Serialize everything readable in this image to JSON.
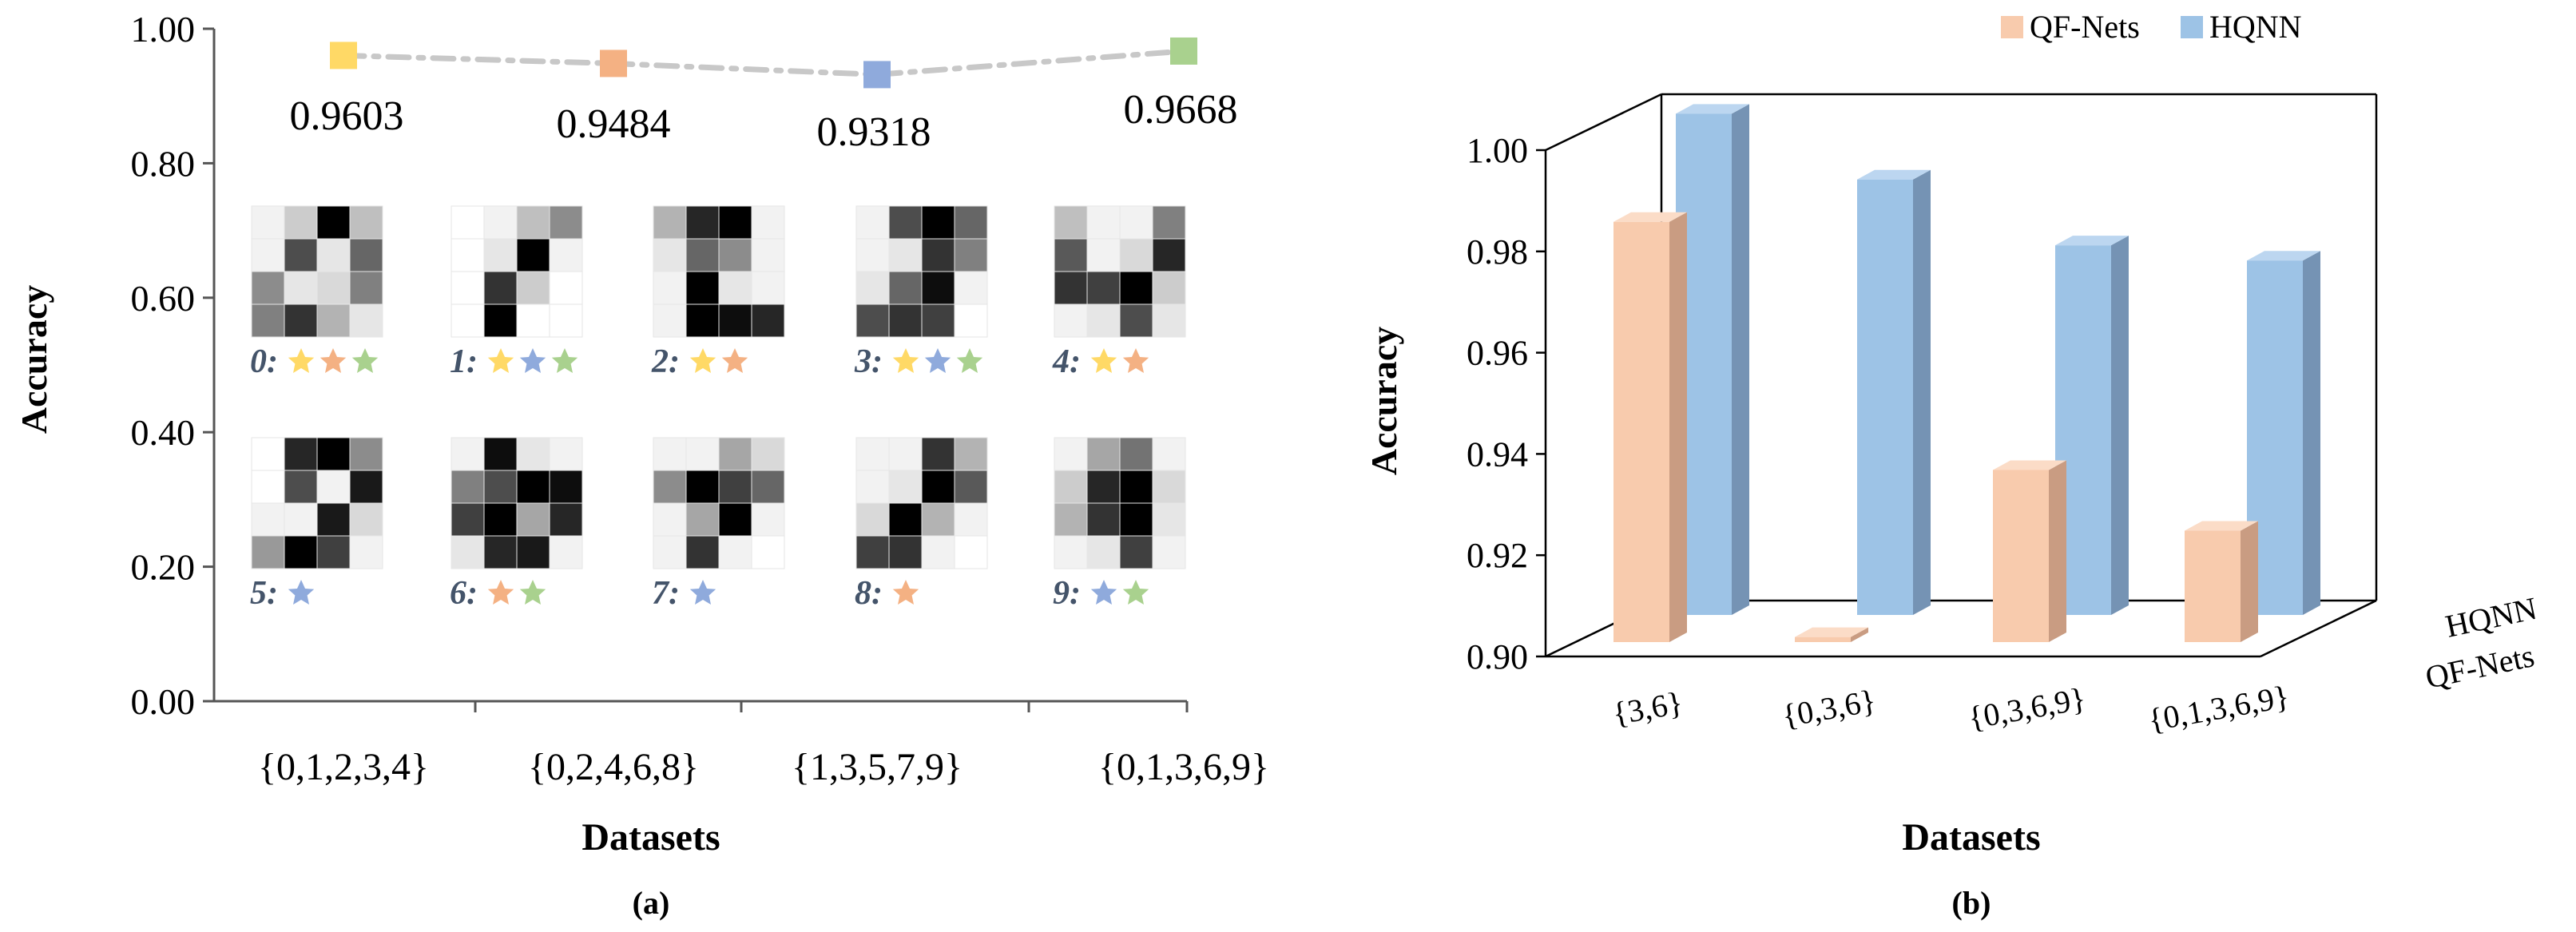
{
  "chart_data": [
    {
      "type": "line",
      "panel_label": "(a)",
      "ylabel": "Accuracy",
      "xlabel": "Datasets",
      "ylim": [
        0,
        1
      ],
      "yticks": [
        "0.00",
        "0.20",
        "0.40",
        "0.60",
        "0.80",
        "1.00"
      ],
      "categories": [
        "{0,1,2,3,4}",
        "{0,2,4,6,8}",
        "{1,3,5,7,9}",
        "{0,1,3,6,9}"
      ],
      "values": [
        0.9603,
        0.9484,
        0.9318,
        0.9668
      ],
      "value_labels": [
        "0.9603",
        "0.9484",
        "0.9318",
        "0.9668"
      ],
      "marker_colors": [
        "#ffd966",
        "#f4b183",
        "#8faadc",
        "#a9d18e"
      ],
      "line_color": "#c8c8c8",
      "digit_labels": [
        "0:",
        "1:",
        "2:",
        "3:",
        "4:",
        "5:",
        "6:",
        "7:",
        "8:",
        "9:"
      ],
      "digit_stars": [
        [
          "#ffd966",
          "#f4b183",
          "#a9d18e"
        ],
        [
          "#ffd966",
          "#8faadc",
          "#a9d18e"
        ],
        [
          "#ffd966",
          "#f4b183"
        ],
        [
          "#ffd966",
          "#8faadc",
          "#a9d18e"
        ],
        [
          "#ffd966",
          "#f4b183"
        ],
        [
          "#8faadc"
        ],
        [
          "#f4b183",
          "#a9d18e"
        ],
        [
          "#8faadc"
        ],
        [
          "#f4b183"
        ],
        [
          "#8faadc",
          "#a9d18e"
        ]
      ],
      "digit_patterns": [
        [
          [
            0.05,
            0.2,
            1,
            0.25
          ],
          [
            0.05,
            0.7,
            0.1,
            0.6
          ],
          [
            0.45,
            0.1,
            0.15,
            0.5
          ],
          [
            0.5,
            0.8,
            0.3,
            0.1
          ]
        ],
        [
          [
            0,
            0.05,
            0.25,
            0.45
          ],
          [
            0,
            0.1,
            1,
            0.05
          ],
          [
            0,
            0.8,
            0.2,
            0
          ],
          [
            0,
            1,
            0,
            0
          ]
        ],
        [
          [
            0.3,
            0.85,
            1,
            0.05
          ],
          [
            0.1,
            0.6,
            0.45,
            0.05
          ],
          [
            0.05,
            1,
            0.1,
            0.05
          ],
          [
            0.05,
            1,
            0.95,
            0.85
          ]
        ],
        [
          [
            0.05,
            0.7,
            1,
            0.6
          ],
          [
            0.05,
            0.1,
            0.8,
            0.5
          ],
          [
            0.1,
            0.6,
            0.95,
            0.05
          ],
          [
            0.7,
            0.8,
            0.75,
            0
          ]
        ],
        [
          [
            0.25,
            0.05,
            0.05,
            0.5
          ],
          [
            0.65,
            0.05,
            0.15,
            0.85
          ],
          [
            0.8,
            0.75,
            1,
            0.2
          ],
          [
            0.05,
            0.1,
            0.7,
            0.1
          ]
        ],
        [
          [
            0,
            0.85,
            1,
            0.45
          ],
          [
            0,
            0.7,
            0.05,
            0.9
          ],
          [
            0.05,
            0.05,
            0.9,
            0.15
          ],
          [
            0.4,
            1,
            0.75,
            0.05
          ]
        ],
        [
          [
            0.05,
            0.95,
            0.1,
            0.05
          ],
          [
            0.5,
            0.7,
            1,
            0.95
          ],
          [
            0.75,
            1,
            0.35,
            0.85
          ],
          [
            0.1,
            0.85,
            0.9,
            0.05
          ]
        ],
        [
          [
            0.05,
            0.05,
            0.35,
            0.15
          ],
          [
            0.45,
            1,
            0.75,
            0.6
          ],
          [
            0.05,
            0.35,
            1,
            0.05
          ],
          [
            0.05,
            0.8,
            0.05,
            0
          ]
        ],
        [
          [
            0.05,
            0.05,
            0.8,
            0.3
          ],
          [
            0.05,
            0.1,
            1,
            0.65
          ],
          [
            0.15,
            1,
            0.3,
            0.05
          ],
          [
            0.75,
            0.8,
            0.05,
            0
          ]
        ],
        [
          [
            0.05,
            0.35,
            0.55,
            0.05
          ],
          [
            0.2,
            0.85,
            1,
            0.15
          ],
          [
            0.3,
            0.8,
            1,
            0.1
          ],
          [
            0.05,
            0.1,
            0.75,
            0.05
          ]
        ]
      ]
    },
    {
      "type": "bar",
      "panel_label": "(b)",
      "ylabel": "Accuracy",
      "xlabel": "Datasets",
      "ylim": [
        0.9,
        1.0
      ],
      "yticks": [
        "0.90",
        "0.92",
        "0.94",
        "0.96",
        "0.98",
        "1.00"
      ],
      "categories": [
        "{3,6}",
        "{0,3,6}",
        "{0,3,6,9}",
        "{0,1,3,6,9}"
      ],
      "depth_labels": [
        "HQNN",
        "QF-Nets"
      ],
      "series": [
        {
          "name": "QF-Nets",
          "color": "#f8cbad",
          "values": [
            0.983,
            0.901,
            0.934,
            0.922
          ]
        },
        {
          "name": "HQNN",
          "color": "#9dc3e6",
          "values": [
            0.999,
            0.986,
            0.973,
            0.97
          ]
        }
      ]
    }
  ]
}
